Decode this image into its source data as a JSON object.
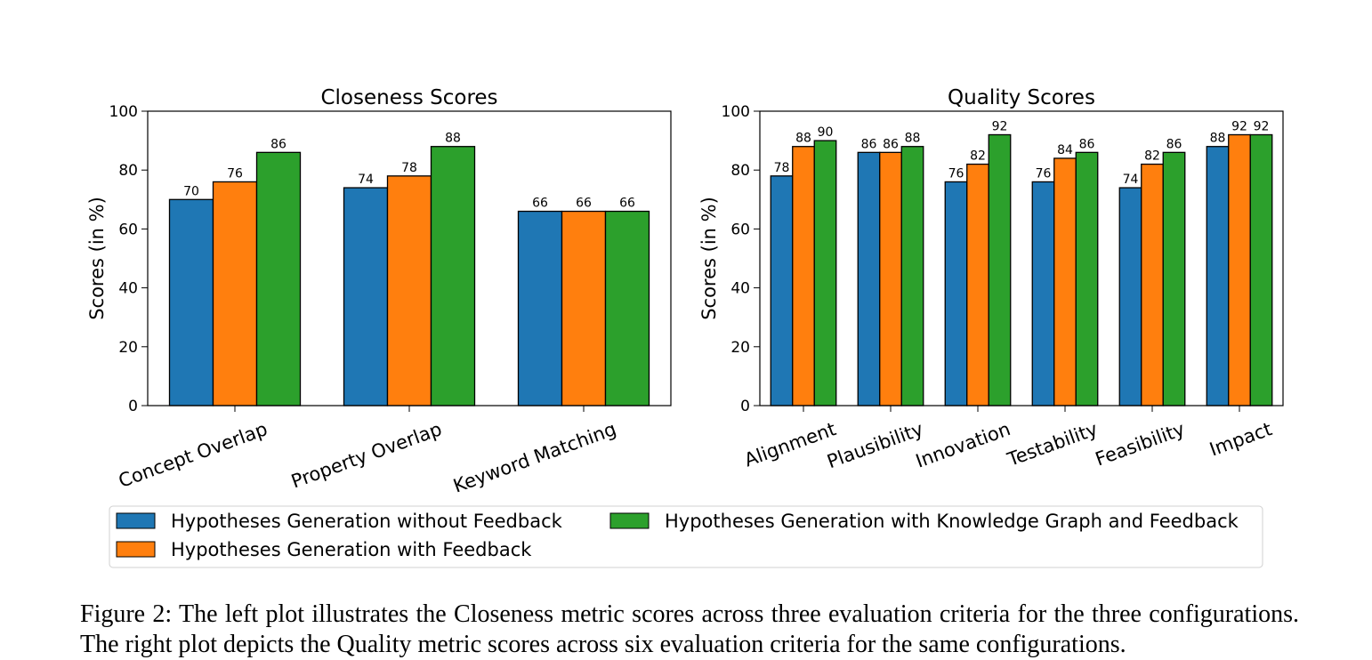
{
  "chart_data": [
    {
      "type": "bar",
      "title": "Closeness Scores",
      "ylabel": "Scores (in %)",
      "xlabel": "",
      "ylim": [
        0,
        100
      ],
      "yticks": [
        0,
        20,
        40,
        60,
        80,
        100
      ],
      "categories": [
        "Concept Overlap",
        "Property Overlap",
        "Keyword Matching"
      ],
      "series": [
        {
          "name": "Hypotheses Generation without Feedback",
          "color": "#1f77b4",
          "values": [
            70,
            74,
            66
          ]
        },
        {
          "name": "Hypotheses Generation with Feedback",
          "color": "#ff7f0e",
          "values": [
            76,
            78,
            66
          ]
        },
        {
          "name": "Hypotheses Generation with Knowledge Graph and Feedback",
          "color": "#2ca02c",
          "values": [
            86,
            88,
            66
          ]
        }
      ]
    },
    {
      "type": "bar",
      "title": "Quality Scores",
      "ylabel": "Scores (in %)",
      "xlabel": "",
      "ylim": [
        0,
        100
      ],
      "yticks": [
        0,
        20,
        40,
        60,
        80,
        100
      ],
      "categories": [
        "Alignment",
        "Plausibility",
        "Innovation",
        "Testability",
        "Feasibility",
        "Impact"
      ],
      "series": [
        {
          "name": "Hypotheses Generation without Feedback",
          "color": "#1f77b4",
          "values": [
            78,
            86,
            76,
            76,
            74,
            88
          ]
        },
        {
          "name": "Hypotheses Generation with Feedback",
          "color": "#ff7f0e",
          "values": [
            88,
            86,
            82,
            84,
            82,
            92
          ]
        },
        {
          "name": "Hypotheses Generation with Knowledge Graph and Feedback",
          "color": "#2ca02c",
          "values": [
            90,
            88,
            92,
            86,
            86,
            92
          ]
        }
      ]
    }
  ],
  "legend": {
    "placement": "bottom-center",
    "items": [
      {
        "label": "Hypotheses Generation without Feedback",
        "color": "#1f77b4"
      },
      {
        "label": "Hypotheses Generation with Feedback",
        "color": "#ff7f0e"
      },
      {
        "label": "Hypotheses Generation with Knowledge Graph and Feedback",
        "color": "#2ca02c"
      }
    ]
  },
  "caption": "Figure 2: The left plot illustrates the Closeness metric scores across three evaluation criteria for the three configurations. The right plot depicts the Quality metric scores across six evaluation criteria for the same configurations."
}
